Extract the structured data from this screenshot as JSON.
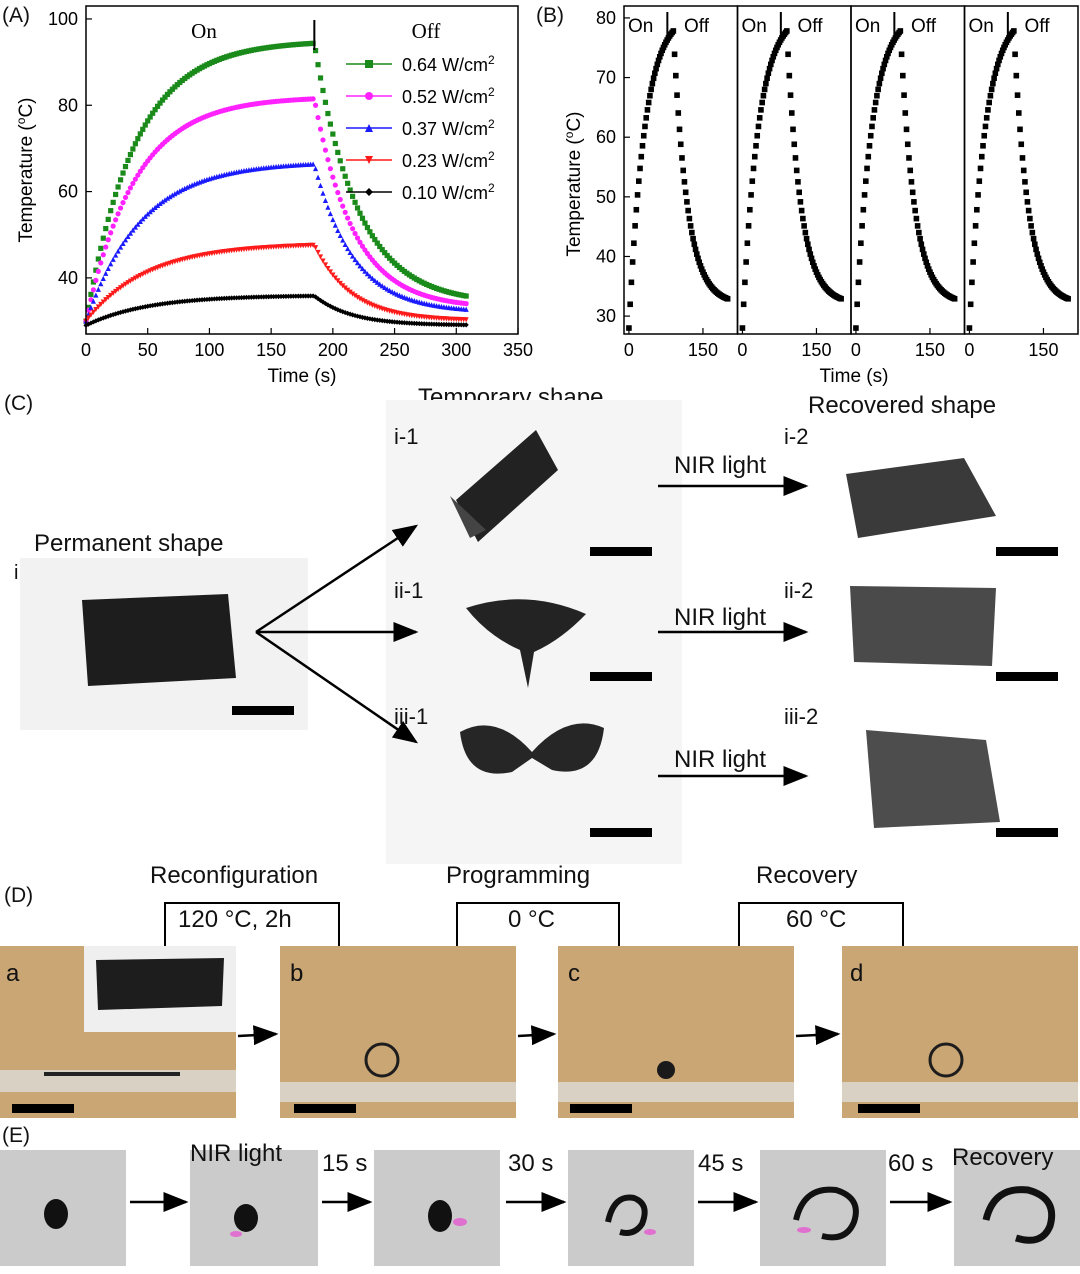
{
  "panel_labels": {
    "A": "(A)",
    "B": "(B)",
    "C": "(C)",
    "D": "(D)",
    "E": "(E)"
  },
  "chart_data": [
    {
      "type": "scatter",
      "title": "",
      "xlabel": "Time (s)",
      "ylabel": "Temperature (oC)",
      "xlim": [
        0,
        350
      ],
      "ylim": [
        27,
        103
      ],
      "xticks": [
        "0",
        "50",
        "100",
        "150",
        "200",
        "250",
        "300",
        "350"
      ],
      "yticks": [
        "40",
        "60",
        "80",
        "100"
      ],
      "annotations": {
        "on": "On",
        "off": "Off"
      },
      "switch_time": 185,
      "legend_units": "W/cm",
      "legend_sup": "2",
      "series": [
        {
          "name": "0.64 W/cm2",
          "label": "0.64",
          "color": "#1a8a1a",
          "marker": "square",
          "T0": 30,
          "Tmax": 95,
          "Tend": 34,
          "tau_on": 40,
          "tau_off": 35
        },
        {
          "name": "0.52 W/cm2",
          "label": "0.52",
          "color": "#ff22ff",
          "marker": "circle",
          "T0": 30,
          "Tmax": 82,
          "Tend": 33,
          "tau_on": 40,
          "tau_off": 32
        },
        {
          "name": "0.37 W/cm2",
          "label": "0.37",
          "color": "#1a1aff",
          "marker": "triangle-up",
          "T0": 30,
          "Tmax": 67,
          "Tend": 32,
          "tau_on": 45,
          "tau_off": 32
        },
        {
          "name": "0.23 W/cm2",
          "label": "0.23",
          "color": "#ff1a1a",
          "marker": "triangle-down",
          "T0": 30,
          "Tmax": 48,
          "Tend": 30,
          "tau_on": 50,
          "tau_off": 30
        },
        {
          "name": "0.10 W/cm2",
          "label": "0.10",
          "color": "#000000",
          "marker": "diamond",
          "T0": 29,
          "Tmax": 36,
          "Tend": 29,
          "tau_on": 50,
          "tau_off": 30
        }
      ]
    },
    {
      "type": "scatter",
      "title": "",
      "xlabel": "Time (s)",
      "ylabel": "Temperature (oC)",
      "ylim": [
        27,
        82
      ],
      "yticks": [
        "30",
        "40",
        "50",
        "60",
        "70",
        "80"
      ],
      "xticks": [
        "0",
        "150"
      ],
      "cycle_xlim": [
        -10,
        220
      ],
      "annotations": {
        "on": "On",
        "off": "Off"
      },
      "cycles": 4,
      "T0": 28,
      "Tmax": 79,
      "Tend": 32,
      "switch_time": 90,
      "color": "#000000"
    }
  ],
  "panelC": {
    "header_temp": "Temporary shape",
    "header_rec": "Recovered shape",
    "permanent": "Permanent shape",
    "labels": {
      "i": "i",
      "i1": "i-1",
      "i2": "i-2",
      "ii1": "ii-1",
      "ii2": "ii-2",
      "iii1": "iii-1",
      "iii2": "iii-2"
    },
    "nir": "NIR light"
  },
  "panelD": {
    "steps": [
      {
        "title": "Reconfiguration",
        "cond": "120 °C, 2h"
      },
      {
        "title": "Programming",
        "cond": "0 °C"
      },
      {
        "title": "Recovery",
        "cond": "60 °C"
      }
    ],
    "photos": {
      "a": "a",
      "b": "b",
      "c": "c",
      "d": "d"
    }
  },
  "panelE": {
    "nir": "NIR light",
    "t15": "15 s",
    "t30": "30 s",
    "t45": "45 s",
    "t60": "60 s",
    "recovery": "Recovery"
  }
}
